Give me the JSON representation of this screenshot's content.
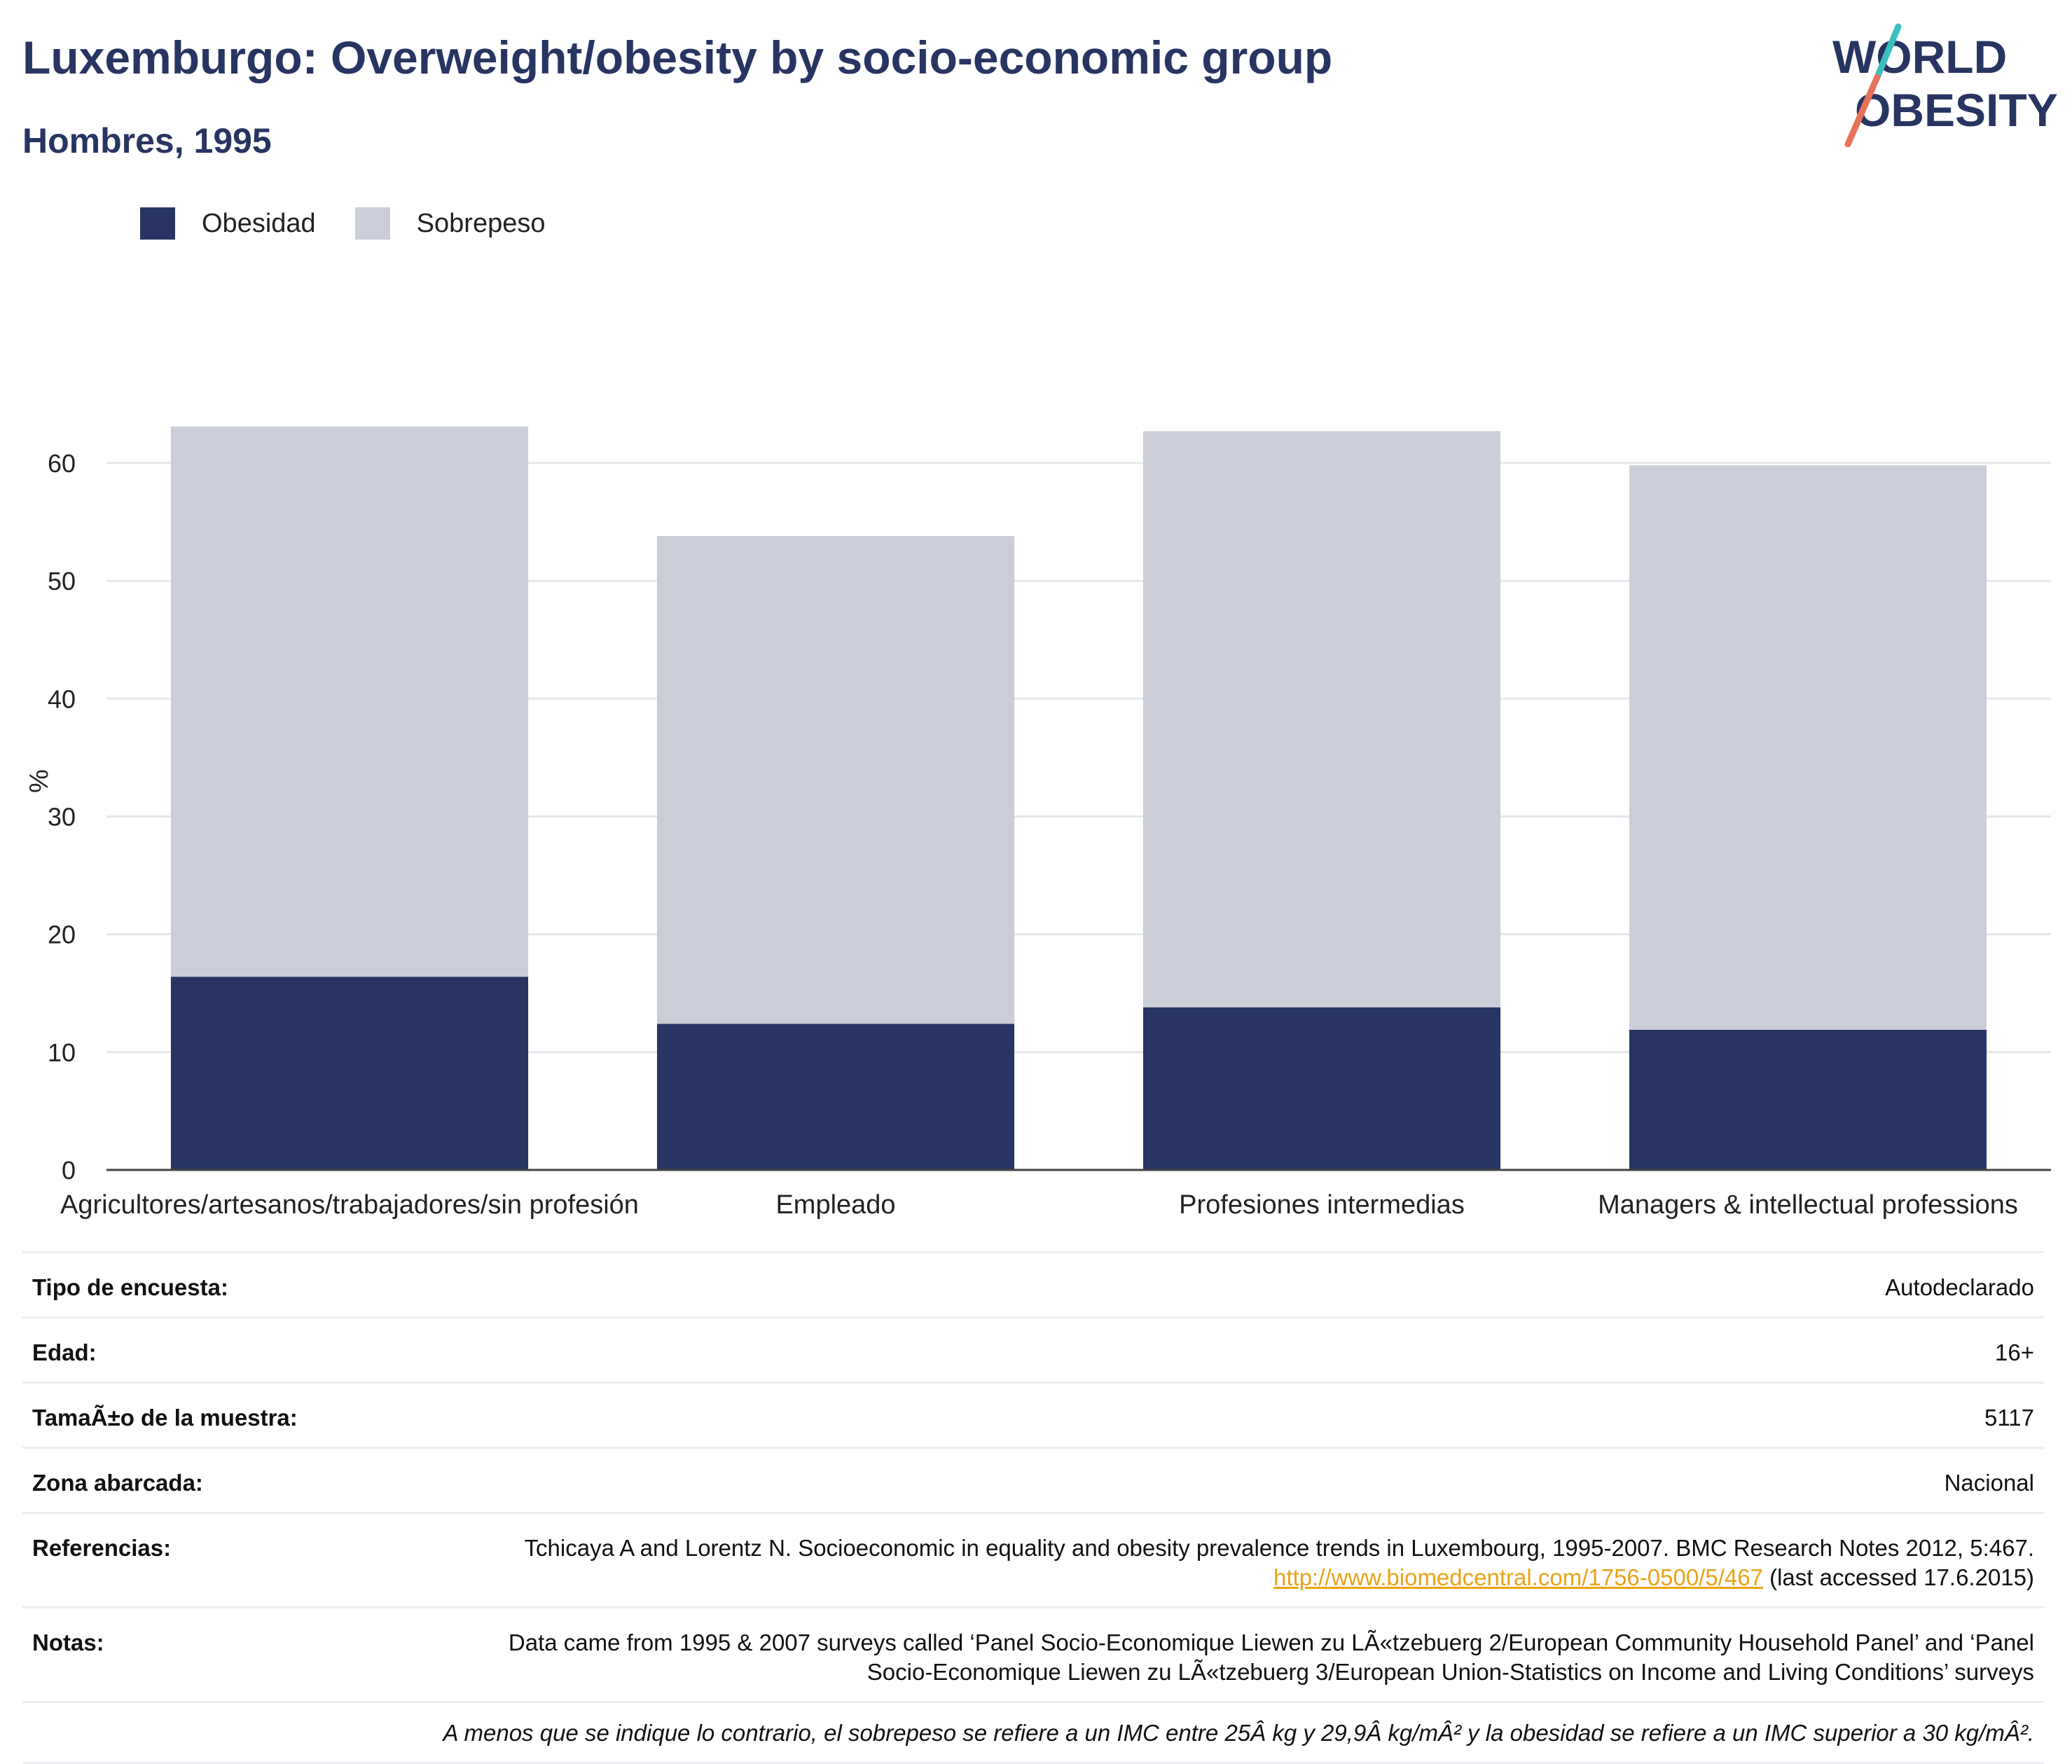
{
  "header": {
    "title": "Luxemburgo: Overweight/obesity by socio-economic group",
    "subtitle": "Hombres, 1995"
  },
  "logo": {
    "line1": "WORLD",
    "line2": "OBESITY"
  },
  "colors": {
    "obesity": "#283562",
    "overweight": "#cbcdd8",
    "title": "#283562",
    "link": "#e8a317",
    "logo_teal": "#3bbfbf",
    "logo_coral": "#e8715a"
  },
  "legend": [
    {
      "label": "Obesidad",
      "color": "#283562"
    },
    {
      "label": "Sobrepeso",
      "color": "#cbcdd8"
    }
  ],
  "chart_data": {
    "type": "bar",
    "stacked": true,
    "categories": [
      "Agricultores/artesanos/trabajadores/sin profesión",
      "Empleado",
      "Profesiones intermedias",
      "Managers & intellectual professions"
    ],
    "series": [
      {
        "name": "Obesidad",
        "values": [
          16.4,
          12.4,
          13.8,
          11.9
        ]
      },
      {
        "name": "Sobrepeso",
        "values": [
          46.7,
          41.4,
          48.9,
          47.9
        ]
      }
    ],
    "ylabel": "%",
    "ylim": [
      0,
      66
    ],
    "yticks": [
      0,
      10,
      20,
      30,
      40,
      50,
      60
    ],
    "grid": true,
    "legend_position": "top-left"
  },
  "info": {
    "rows": [
      {
        "key": "Tipo de encuesta:",
        "value": "Autodeclarado"
      },
      {
        "key": "Edad:",
        "value": "16+"
      },
      {
        "key": "TamaÃ±o de la muestra:",
        "value": "5117"
      },
      {
        "key": "Zona abarcada:",
        "value": "Nacional"
      }
    ],
    "references": {
      "key": "Referencias:",
      "text_before": "Tchicaya A and Lorentz N. Socioeconomic in equality and obesity prevalence trends in Luxembourg, 1995-2007. BMC Research Notes 2012, 5:467.",
      "link": "http://www.biomedcentral.com/1756-0500/5/467",
      "text_after": "(last accessed 17.6.2015)"
    },
    "notes": {
      "key": "Notas:",
      "value": "Data came from 1995 & 2007 surveys called ‘Panel Socio-Economique Liewen zu LÃ«tzebuerg 2/European Community Household Panel’ and ‘Panel Socio-Economique Liewen zu LÃ«tzebuerg 3/European Union-Statistics on Income and Living Conditions’ surveys"
    },
    "footnote": "A menos que se indique lo contrario, el sobrepeso se refiere a un IMC entre 25Â kg y 29,9Â kg/mÂ² y la obesidad se refiere a un IMC superior a 30 kg/mÂ²."
  }
}
